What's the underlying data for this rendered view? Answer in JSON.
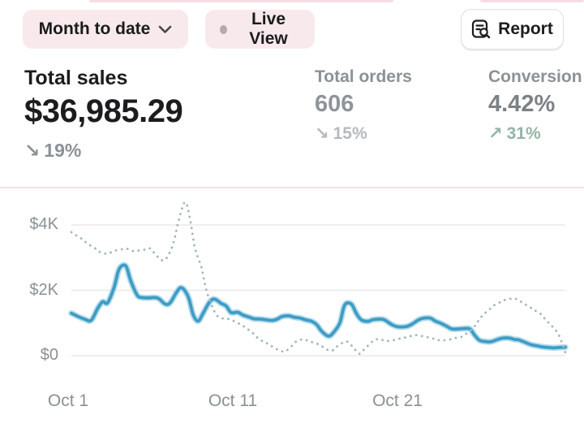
{
  "toolbar": {
    "date_range_label": "Month to date",
    "live_view_label": "Live View",
    "report_label": "Report"
  },
  "metrics": {
    "total_sales": {
      "label": "Total sales",
      "value": "$36,985.29",
      "delta_arrow": "↘",
      "delta": "19%",
      "direction": "down"
    },
    "total_orders": {
      "label": "Total orders",
      "value": "606",
      "delta_arrow": "↘",
      "delta": "15%",
      "direction": "down"
    },
    "conversion": {
      "label": "Conversion",
      "value": "4.42%",
      "delta_arrow": "↗",
      "delta": "31%",
      "direction": "up"
    }
  },
  "colors": {
    "text_dark": "#1a1c1d",
    "pill_background": "#f8e9ec",
    "delta_gray": "#8b9196",
    "delta_light_gray": "#b4babd",
    "delta_green": "#94b4a5",
    "line_current": "#3e9cc4",
    "line_current_halo": "#b8dcec",
    "line_comparison": "#a3b4bf",
    "gridline": "#ebe7e7"
  },
  "chart_data": {
    "type": "line",
    "title": "Total sales over month to date",
    "x_axis": {
      "ticks": [
        {
          "day": 1,
          "label": "Oct 1"
        },
        {
          "day": 11,
          "label": "Oct 11"
        },
        {
          "day": 21,
          "label": "Oct 21"
        }
      ],
      "range_days": [
        1,
        31
      ]
    },
    "y_axis": {
      "ticks": [
        {
          "value": 0,
          "label": "$0"
        },
        {
          "value": 2000,
          "label": "$2K"
        },
        {
          "value": 4000,
          "label": "$4K"
        }
      ],
      "range": [
        0,
        4000
      ]
    },
    "grid": true,
    "legend": false,
    "series": [
      {
        "name": "current-period",
        "style": "solid",
        "color": "#3e9cc4",
        "points": [
          [
            1,
            1300
          ],
          [
            1.4,
            1200
          ],
          [
            1.8,
            1120
          ],
          [
            2.2,
            1080
          ],
          [
            2.6,
            1450
          ],
          [
            2.9,
            1650
          ],
          [
            3.2,
            1620
          ],
          [
            3.6,
            2100
          ],
          [
            3.9,
            2650
          ],
          [
            4.3,
            2750
          ],
          [
            4.6,
            2300
          ],
          [
            5,
            1850
          ],
          [
            5.3,
            1780
          ],
          [
            5.7,
            1770
          ],
          [
            6,
            1780
          ],
          [
            6.3,
            1750
          ],
          [
            6.7,
            1580
          ],
          [
            7,
            1620
          ],
          [
            7.4,
            1950
          ],
          [
            7.7,
            2080
          ],
          [
            8.1,
            1800
          ],
          [
            8.4,
            1250
          ],
          [
            8.7,
            1060
          ],
          [
            9,
            1300
          ],
          [
            9.4,
            1650
          ],
          [
            9.7,
            1730
          ],
          [
            10.1,
            1600
          ],
          [
            10.4,
            1520
          ],
          [
            10.7,
            1320
          ],
          [
            11.1,
            1330
          ],
          [
            11.4,
            1250
          ],
          [
            11.8,
            1180
          ],
          [
            12.1,
            1130
          ],
          [
            12.5,
            1120
          ],
          [
            12.8,
            1100
          ],
          [
            13.2,
            1080
          ],
          [
            13.5,
            1120
          ],
          [
            13.8,
            1200
          ],
          [
            14.2,
            1220
          ],
          [
            14.5,
            1180
          ],
          [
            14.9,
            1150
          ],
          [
            15.2,
            1100
          ],
          [
            15.6,
            1050
          ],
          [
            15.9,
            950
          ],
          [
            16.2,
            750
          ],
          [
            16.6,
            600
          ],
          [
            16.9,
            700
          ],
          [
            17.3,
            1000
          ],
          [
            17.6,
            1550
          ],
          [
            18,
            1580
          ],
          [
            18.3,
            1300
          ],
          [
            18.6,
            1100
          ],
          [
            19,
            1050
          ],
          [
            19.3,
            1100
          ],
          [
            19.7,
            1120
          ],
          [
            20,
            1100
          ],
          [
            20.4,
            970
          ],
          [
            20.7,
            900
          ],
          [
            21,
            880
          ],
          [
            21.4,
            900
          ],
          [
            21.7,
            970
          ],
          [
            22.1,
            1100
          ],
          [
            22.4,
            1150
          ],
          [
            22.8,
            1150
          ],
          [
            23.1,
            1060
          ],
          [
            23.4,
            1000
          ],
          [
            23.8,
            900
          ],
          [
            24.1,
            820
          ],
          [
            24.5,
            820
          ],
          [
            24.8,
            830
          ],
          [
            25.2,
            820
          ],
          [
            25.5,
            620
          ],
          [
            25.8,
            470
          ],
          [
            26.2,
            430
          ],
          [
            26.5,
            430
          ],
          [
            26.9,
            500
          ],
          [
            27.2,
            540
          ],
          [
            27.6,
            540
          ],
          [
            27.9,
            500
          ],
          [
            28.2,
            480
          ],
          [
            28.6,
            400
          ],
          [
            28.9,
            340
          ],
          [
            29.3,
            300
          ],
          [
            29.6,
            270
          ],
          [
            30,
            250
          ],
          [
            30.3,
            240
          ],
          [
            30.6,
            250
          ],
          [
            31,
            260
          ]
        ]
      },
      {
        "name": "comparison-period",
        "style": "dotted",
        "color": "#a3b4bf",
        "points": [
          [
            1,
            3780
          ],
          [
            1.3,
            3680
          ],
          [
            1.7,
            3550
          ],
          [
            2,
            3420
          ],
          [
            2.4,
            3300
          ],
          [
            2.7,
            3180
          ],
          [
            3.1,
            3120
          ],
          [
            3.4,
            3160
          ],
          [
            3.7,
            3220
          ],
          [
            4.1,
            3260
          ],
          [
            4.4,
            3270
          ],
          [
            4.8,
            3200
          ],
          [
            5.1,
            3220
          ],
          [
            5.5,
            3250
          ],
          [
            5.8,
            3280
          ],
          [
            6.1,
            3100
          ],
          [
            6.5,
            2920
          ],
          [
            6.8,
            3000
          ],
          [
            7.2,
            3450
          ],
          [
            7.5,
            4100
          ],
          [
            7.9,
            4700
          ],
          [
            8.2,
            4200
          ],
          [
            8.5,
            3300
          ],
          [
            8.9,
            2700
          ],
          [
            9.2,
            2000
          ],
          [
            9.6,
            1450
          ],
          [
            9.9,
            1200
          ],
          [
            10.3,
            1130
          ],
          [
            10.6,
            1120
          ],
          [
            10.9,
            1050
          ],
          [
            11.3,
            950
          ],
          [
            11.6,
            850
          ],
          [
            12,
            700
          ],
          [
            12.3,
            550
          ],
          [
            12.7,
            420
          ],
          [
            13,
            350
          ],
          [
            13.3,
            250
          ],
          [
            13.7,
            150
          ],
          [
            14,
            140
          ],
          [
            14.4,
            300
          ],
          [
            14.7,
            450
          ],
          [
            15.1,
            500
          ],
          [
            15.4,
            450
          ],
          [
            15.7,
            400
          ],
          [
            16.1,
            330
          ],
          [
            16.4,
            220
          ],
          [
            16.8,
            150
          ],
          [
            17.1,
            270
          ],
          [
            17.5,
            400
          ],
          [
            17.8,
            420
          ],
          [
            18.2,
            200
          ],
          [
            18.5,
            60
          ],
          [
            18.8,
            200
          ],
          [
            19.2,
            400
          ],
          [
            19.5,
            500
          ],
          [
            19.9,
            480
          ],
          [
            20.2,
            450
          ],
          [
            20.6,
            480
          ],
          [
            20.9,
            520
          ],
          [
            21.2,
            550
          ],
          [
            21.6,
            600
          ],
          [
            21.9,
            630
          ],
          [
            22.3,
            600
          ],
          [
            22.6,
            570
          ],
          [
            23,
            520
          ],
          [
            23.3,
            480
          ],
          [
            23.6,
            470
          ],
          [
            24,
            500
          ],
          [
            24.3,
            540
          ],
          [
            24.7,
            580
          ],
          [
            25,
            680
          ],
          [
            25.4,
            850
          ],
          [
            25.7,
            1050
          ],
          [
            26,
            1250
          ],
          [
            26.4,
            1420
          ],
          [
            26.7,
            1550
          ],
          [
            27.1,
            1650
          ],
          [
            27.4,
            1720
          ],
          [
            27.8,
            1750
          ],
          [
            28.1,
            1720
          ],
          [
            28.4,
            1620
          ],
          [
            28.8,
            1500
          ],
          [
            29.1,
            1400
          ],
          [
            29.5,
            1280
          ],
          [
            29.8,
            1100
          ],
          [
            30.1,
            950
          ],
          [
            30.5,
            720
          ],
          [
            30.8,
            400
          ],
          [
            31,
            100
          ]
        ]
      }
    ]
  }
}
